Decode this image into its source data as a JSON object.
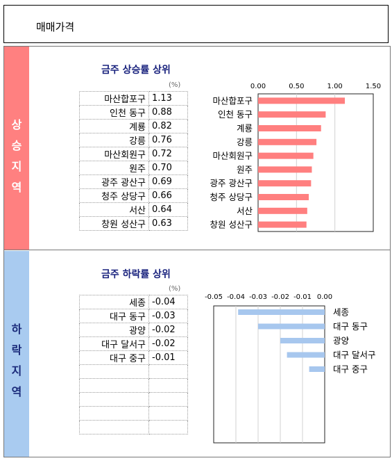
{
  "header": {
    "title": "매매가격"
  },
  "sections": {
    "up": {
      "side_label": [
        "상",
        "승",
        "지",
        "역"
      ],
      "title": "금주 상승률 상위",
      "unit": "(%)"
    },
    "down": {
      "side_label": [
        "하",
        "락",
        "지",
        "역"
      ],
      "title": "금주 하락률 상위",
      "unit": "(%)"
    }
  },
  "tables": {
    "up": [
      {
        "name": "마산합포구",
        "value": "1.13"
      },
      {
        "name": "인천 동구",
        "value": "0.88"
      },
      {
        "name": "계룡",
        "value": "0.82"
      },
      {
        "name": "강릉",
        "value": "0.76"
      },
      {
        "name": "마산회원구",
        "value": "0.72"
      },
      {
        "name": "원주",
        "value": "0.70"
      },
      {
        "name": "광주 광산구",
        "value": "0.69"
      },
      {
        "name": "청주 상당구",
        "value": "0.66"
      },
      {
        "name": "서산",
        "value": "0.64"
      },
      {
        "name": "창원 성산구",
        "value": "0.63"
      }
    ],
    "down": [
      {
        "name": "세종",
        "value": "-0.04"
      },
      {
        "name": "대구 동구",
        "value": "-0.03"
      },
      {
        "name": "광양",
        "value": "-0.02"
      },
      {
        "name": "대구 달서구",
        "value": "-0.02"
      },
      {
        "name": "대구 중구",
        "value": "-0.01"
      },
      {
        "name": "",
        "value": ""
      },
      {
        "name": "",
        "value": ""
      },
      {
        "name": "",
        "value": ""
      },
      {
        "name": "",
        "value": ""
      },
      {
        "name": "",
        "value": ""
      }
    ]
  },
  "chart_data": [
    {
      "type": "bar",
      "orientation": "horizontal",
      "categories": [
        "마산합포구",
        "인천 동구",
        "계룡",
        "강릉",
        "마산회원구",
        "원주",
        "광주 광산구",
        "청주 상당구",
        "서산",
        "창원 성산구"
      ],
      "values": [
        1.13,
        0.88,
        0.82,
        0.76,
        0.72,
        0.7,
        0.69,
        0.66,
        0.64,
        0.63
      ],
      "xlim": [
        0,
        1.5
      ],
      "ticks": [
        "0.00",
        "0.50",
        "1.00",
        "1.50"
      ],
      "tick_values": [
        0,
        0.5,
        1.0,
        1.5
      ],
      "grid": true,
      "bar_color": "#ff7f7f"
    },
    {
      "type": "bar",
      "orientation": "horizontal",
      "categories": [
        "세종",
        "대구 동구",
        "광양",
        "대구 달서구",
        "대구 중구"
      ],
      "values": [
        -0.04,
        -0.03,
        -0.02,
        -0.02,
        -0.01
      ],
      "bar_values": [
        -0.039,
        -0.03,
        -0.02,
        -0.017,
        -0.007
      ],
      "xlim": [
        -0.05,
        0
      ],
      "ticks": [
        "-0.05",
        "-0.04",
        "-0.03",
        "-0.02",
        "-0.01",
        "0.00"
      ],
      "tick_values": [
        -0.05,
        -0.04,
        -0.03,
        -0.02,
        -0.01,
        0
      ],
      "grid": true,
      "bar_color": "#a7c7ee"
    }
  ]
}
